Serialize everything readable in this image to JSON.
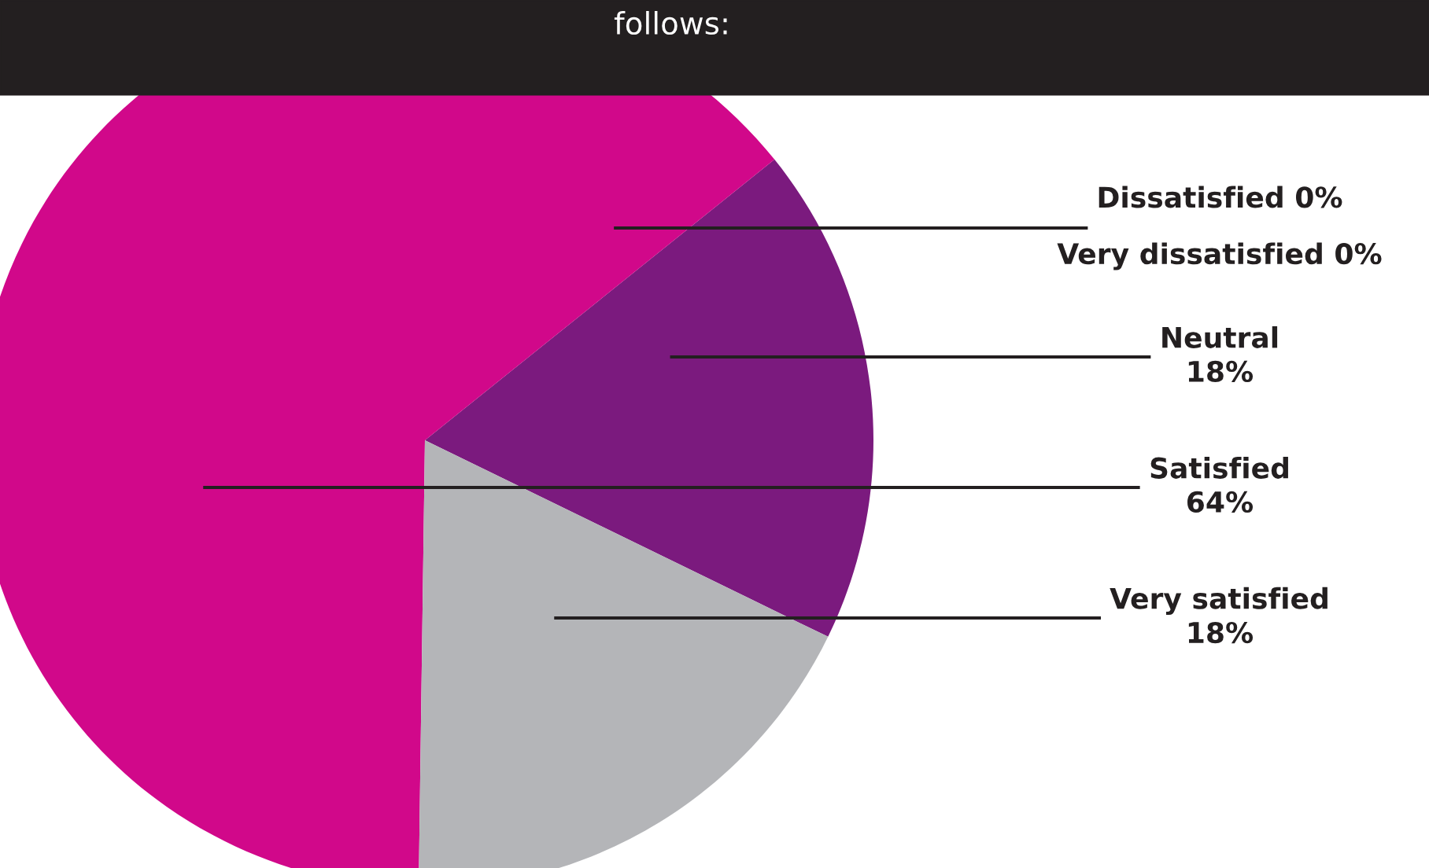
{
  "chart_data": {
    "type": "pie",
    "categories": [
      "Dissatisfied",
      "Very dissatisfied",
      "Neutral",
      "Satisfied",
      "Very satisfied"
    ],
    "values": [
      0,
      0,
      18,
      64,
      18
    ],
    "value_labels": [
      "0%",
      "0%",
      "18%",
      "64%",
      "18%"
    ],
    "colors": [
      "#c8c8cc",
      "#9a9a9e",
      "#7b1a7e",
      "#d1088a",
      "#b4b5b8"
    ],
    "annotations": [
      "follows:"
    ]
  }
}
